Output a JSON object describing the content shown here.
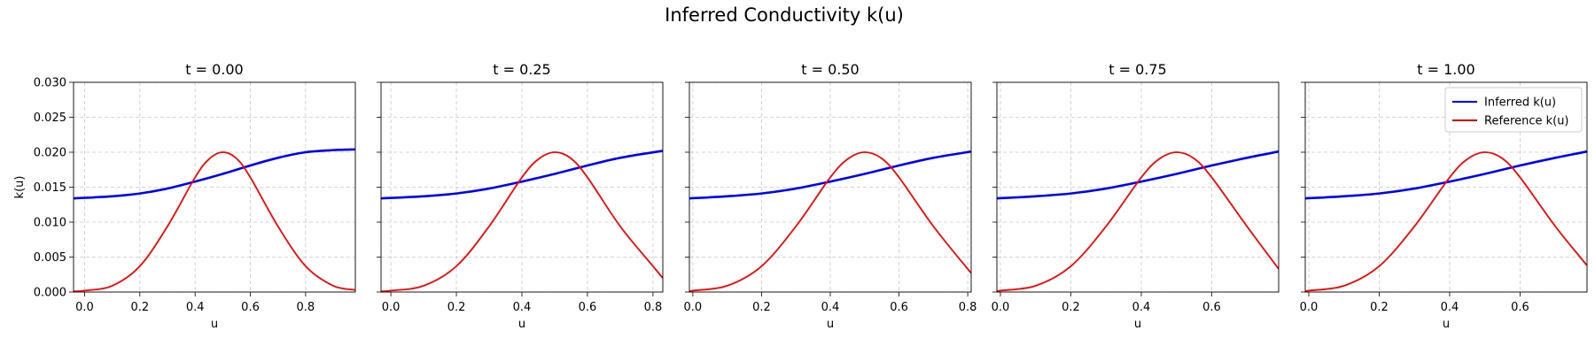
{
  "figure": {
    "title": "Inferred Conductivity k(u)"
  },
  "chart_data": {
    "type": "line",
    "ylabel": "k(u)",
    "xlabel": "u",
    "ylim": [
      0,
      0.03
    ],
    "yticks": [
      "0.000",
      "0.005",
      "0.010",
      "0.015",
      "0.020",
      "0.025",
      "0.030"
    ],
    "grid": true,
    "legend_location": "upper right of last panel",
    "legend": [
      "Inferred k(u)",
      "Reference k(u)"
    ],
    "colors": {
      "inferred": "#0000ff",
      "reference": "#ff0000"
    },
    "panels": [
      {
        "title": "t = 0.00",
        "xlim": [
          -0.04,
          0.98
        ],
        "xticks": [
          "0.0",
          "0.2",
          "0.4",
          "0.6",
          "0.8"
        ],
        "series": [
          {
            "name": "Inferred k(u)",
            "x": [
              -0.04,
              0.1,
              0.2,
              0.3,
              0.4,
              0.5,
              0.6,
              0.7,
              0.8,
              0.9,
              0.98
            ],
            "y": [
              0.0134,
              0.0137,
              0.0141,
              0.0148,
              0.0158,
              0.0169,
              0.0181,
              0.0192,
              0.02,
              0.0203,
              0.0204
            ]
          },
          {
            "name": "Reference k(u)",
            "x": [
              -0.04,
              0.0,
              0.1,
              0.2,
              0.3,
              0.4,
              0.45,
              0.5,
              0.55,
              0.6,
              0.7,
              0.8,
              0.9,
              0.98
            ],
            "y": [
              0.0001,
              0.0002,
              0.0009,
              0.0037,
              0.0094,
              0.0164,
              0.019,
              0.02,
              0.0191,
              0.0164,
              0.0094,
              0.0037,
              0.0009,
              0.0003
            ]
          }
        ]
      },
      {
        "title": "t = 0.25",
        "xlim": [
          -0.03,
          0.83
        ],
        "xticks": [
          "0.0",
          "0.2",
          "0.4",
          "0.6",
          "0.8"
        ],
        "series": [
          {
            "name": "Inferred k(u)",
            "x": [
              -0.03,
              0.1,
              0.2,
              0.3,
              0.4,
              0.5,
              0.6,
              0.7,
              0.83
            ],
            "y": [
              0.0134,
              0.0137,
              0.0141,
              0.0148,
              0.0158,
              0.0169,
              0.0181,
              0.0192,
              0.0202
            ]
          },
          {
            "name": "Reference k(u)",
            "x": [
              -0.03,
              0.0,
              0.1,
              0.2,
              0.3,
              0.4,
              0.45,
              0.5,
              0.55,
              0.6,
              0.7,
              0.8,
              0.83
            ],
            "y": [
              0.0001,
              0.0002,
              0.0009,
              0.0037,
              0.0094,
              0.0164,
              0.019,
              0.02,
              0.0191,
              0.0164,
              0.0094,
              0.0037,
              0.002
            ]
          }
        ]
      },
      {
        "title": "t = 0.50",
        "xlim": [
          -0.01,
          0.81
        ],
        "xticks": [
          "0.0",
          "0.2",
          "0.4",
          "0.6",
          "0.8"
        ],
        "series": [
          {
            "name": "Inferred k(u)",
            "x": [
              -0.01,
              0.1,
              0.2,
              0.3,
              0.4,
              0.5,
              0.6,
              0.7,
              0.81
            ],
            "y": [
              0.0134,
              0.0137,
              0.0141,
              0.0148,
              0.0158,
              0.0169,
              0.0181,
              0.0192,
              0.0201
            ]
          },
          {
            "name": "Reference k(u)",
            "x": [
              -0.01,
              0.0,
              0.1,
              0.2,
              0.3,
              0.4,
              0.45,
              0.5,
              0.55,
              0.6,
              0.7,
              0.81
            ],
            "y": [
              0.0001,
              0.0002,
              0.0009,
              0.0037,
              0.0094,
              0.0164,
              0.019,
              0.02,
              0.0191,
              0.0164,
              0.0094,
              0.0027
            ]
          }
        ]
      },
      {
        "title": "t = 0.75",
        "xlim": [
          -0.01,
          0.79
        ],
        "xticks": [
          "0.0",
          "0.2",
          "0.4",
          "0.6"
        ],
        "series": [
          {
            "name": "Inferred k(u)",
            "x": [
              -0.01,
              0.1,
              0.2,
              0.3,
              0.4,
              0.5,
              0.6,
              0.7,
              0.79
            ],
            "y": [
              0.0134,
              0.0137,
              0.0141,
              0.0148,
              0.0158,
              0.0169,
              0.0181,
              0.0192,
              0.0201
            ]
          },
          {
            "name": "Reference k(u)",
            "x": [
              -0.01,
              0.0,
              0.1,
              0.2,
              0.3,
              0.4,
              0.45,
              0.5,
              0.55,
              0.6,
              0.7,
              0.79
            ],
            "y": [
              0.0001,
              0.0002,
              0.0009,
              0.0037,
              0.0094,
              0.0164,
              0.019,
              0.02,
              0.0191,
              0.0164,
              0.0094,
              0.0033
            ]
          }
        ]
      },
      {
        "title": "t = 1.00",
        "xlim": [
          -0.01,
          0.79
        ],
        "xticks": [
          "0.0",
          "0.2",
          "0.4",
          "0.6"
        ],
        "series": [
          {
            "name": "Inferred k(u)",
            "x": [
              -0.01,
              0.1,
              0.2,
              0.3,
              0.4,
              0.5,
              0.6,
              0.7,
              0.79
            ],
            "y": [
              0.0134,
              0.0137,
              0.0141,
              0.0148,
              0.0158,
              0.0169,
              0.0181,
              0.0192,
              0.0201
            ]
          },
          {
            "name": "Reference k(u)",
            "x": [
              -0.01,
              0.0,
              0.1,
              0.2,
              0.3,
              0.4,
              0.45,
              0.5,
              0.55,
              0.6,
              0.7,
              0.79
            ],
            "y": [
              0.0001,
              0.0002,
              0.0009,
              0.0037,
              0.0094,
              0.0164,
              0.019,
              0.02,
              0.0191,
              0.0164,
              0.0094,
              0.0038
            ]
          }
        ]
      }
    ]
  }
}
